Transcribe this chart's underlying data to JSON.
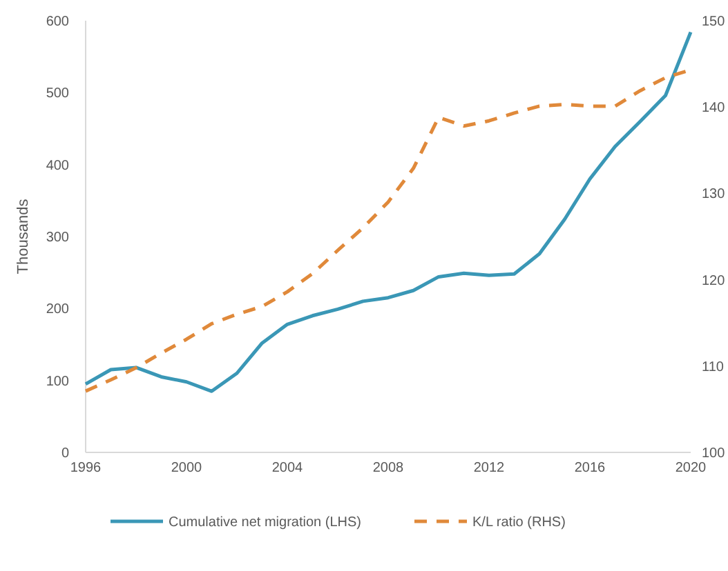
{
  "chart_data": {
    "type": "line",
    "ylabel": "Thousands",
    "x": [
      1996,
      1997,
      1998,
      1999,
      2000,
      2001,
      2002,
      2003,
      2004,
      2005,
      2006,
      2007,
      2008,
      2009,
      2010,
      2011,
      2012,
      2013,
      2014,
      2015,
      2016,
      2017,
      2018,
      2019,
      2020
    ],
    "xlim": [
      1996,
      2020
    ],
    "xticks": [
      1996,
      2000,
      2004,
      2008,
      2012,
      2016,
      2020
    ],
    "ylim": [
      0,
      600
    ],
    "yticks": [
      0,
      100,
      200,
      300,
      400,
      500,
      600
    ],
    "y2lim": [
      100,
      150
    ],
    "y2ticks": [
      100,
      110,
      120,
      130,
      140,
      150
    ],
    "series": [
      {
        "name": "Cumulative net migration (LHS)",
        "color": "#3a97b6",
        "line_style": "solid",
        "values": [
          95,
          115,
          118,
          105,
          98,
          85,
          110,
          152,
          178,
          190,
          199,
          210,
          215,
          225,
          244,
          249,
          246,
          248,
          276,
          324,
          380,
          425,
          460,
          496,
          584
        ]
      },
      {
        "name": "K/L ratio (RHS)",
        "color": "#e0893a",
        "line_style": "dashed",
        "axis": "y2",
        "values": [
          107.1,
          108.4,
          109.8,
          111.5,
          113.1,
          114.9,
          116,
          116.9,
          118.6,
          120.7,
          123.4,
          126,
          129,
          132.9,
          138.8,
          137.8,
          138.4,
          139.3,
          140.1,
          140.3,
          140.1,
          140.1,
          141.9,
          143.4,
          144.3
        ]
      }
    ],
    "grid": false,
    "legend": "bottom"
  }
}
